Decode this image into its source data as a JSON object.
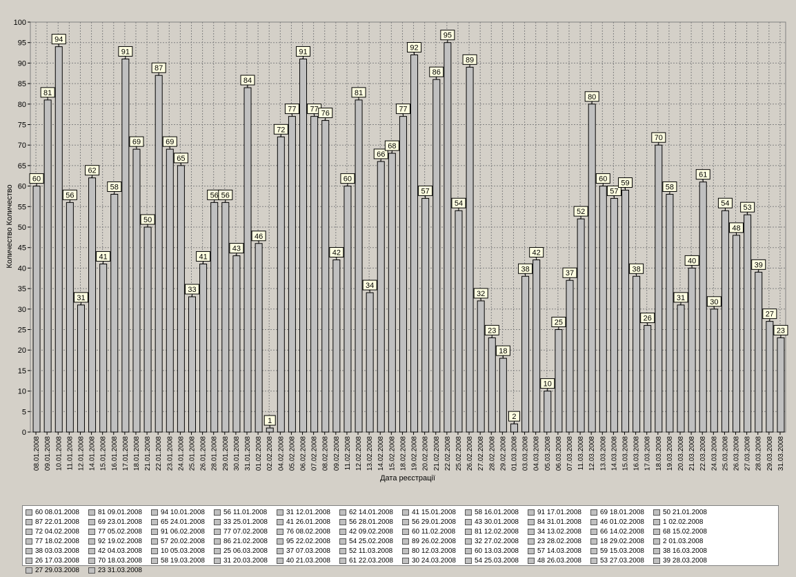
{
  "chart_data": {
    "type": "bar",
    "title": "",
    "xlabel": "Дата реєстрації",
    "ylabel": "Количество Количество",
    "ylim": [
      0,
      100
    ],
    "yticks": [
      0,
      5,
      10,
      15,
      20,
      25,
      30,
      35,
      40,
      45,
      50,
      55,
      60,
      65,
      70,
      75,
      80,
      85,
      90,
      95,
      100
    ],
    "grid": true,
    "legend_position": "bottom",
    "bar_color": "#c0c0c0",
    "categories": [
      "08.01.2008",
      "09.01.2008",
      "10.01.2008",
      "11.01.2008",
      "12.01.2008",
      "14.01.2008",
      "15.01.2008",
      "16.01.2008",
      "17.01.2008",
      "18.01.2008",
      "21.01.2008",
      "22.01.2008",
      "23.01.2008",
      "24.01.2008",
      "25.01.2008",
      "26.01.2008",
      "28.01.2008",
      "29.01.2008",
      "30.01.2008",
      "31.01.2008",
      "01.02.2008",
      "02.02.2008",
      "04.02.2008",
      "05.02.2008",
      "06.02.2008",
      "07.02.2008",
      "08.02.2008",
      "09.02.2008",
      "11.02.2008",
      "12.02.2008",
      "13.02.2008",
      "14.02.2008",
      "15.02.2008",
      "18.02.2008",
      "19.02.2008",
      "20.02.2008",
      "21.02.2008",
      "22.02.2008",
      "25.02.2008",
      "26.02.2008",
      "27.02.2008",
      "28.02.2008",
      "29.02.2008",
      "01.03.2008",
      "03.03.2008",
      "04.03.2008",
      "05.03.2008",
      "06.03.2008",
      "07.03.2008",
      "11.03.2008",
      "12.03.2008",
      "13.03.2008",
      "14.03.2008",
      "15.03.2008",
      "16.03.2008",
      "17.03.2008",
      "18.03.2008",
      "19.03.2008",
      "20.03.2008",
      "21.03.2008",
      "22.03.2008",
      "24.03.2008",
      "25.03.2008",
      "26.03.2008",
      "27.03.2008",
      "28.03.2008",
      "29.03.2008",
      "31.03.2008"
    ],
    "values": [
      60,
      81,
      94,
      56,
      31,
      62,
      41,
      58,
      91,
      69,
      50,
      87,
      69,
      65,
      33,
      41,
      56,
      56,
      43,
      84,
      46,
      1,
      72,
      77,
      91,
      77,
      76,
      42,
      60,
      81,
      34,
      66,
      68,
      77,
      92,
      57,
      86,
      95,
      54,
      89,
      32,
      23,
      18,
      2,
      38,
      42,
      10,
      25,
      37,
      52,
      80,
      60,
      57,
      59,
      38,
      26,
      70,
      58,
      31,
      40,
      61,
      30,
      54,
      48,
      53,
      39,
      27,
      23
    ],
    "legend": [
      {
        "label": "60 08.01.2008"
      },
      {
        "label": "81 09.01.2008"
      },
      {
        "label": "94 10.01.2008"
      },
      {
        "label": "56 11.01.2008"
      },
      {
        "label": "31 12.01.2008"
      },
      {
        "label": "62 14.01.2008"
      },
      {
        "label": "41 15.01.2008"
      },
      {
        "label": "58 16.01.2008"
      },
      {
        "label": "91 17.01.2008"
      },
      {
        "label": "69 18.01.2008"
      },
      {
        "label": "50 21.01.2008"
      },
      {
        "label": "87 22.01.2008"
      },
      {
        "label": "69 23.01.2008"
      },
      {
        "label": "65 24.01.2008"
      },
      {
        "label": "33 25.01.2008"
      },
      {
        "label": "41 26.01.2008"
      },
      {
        "label": "56 28.01.2008"
      },
      {
        "label": "56 29.01.2008"
      },
      {
        "label": "43 30.01.2008"
      },
      {
        "label": "84 31.01.2008"
      },
      {
        "label": "46 01.02.2008"
      },
      {
        "label": "1 02.02.2008"
      },
      {
        "label": "72 04.02.2008"
      },
      {
        "label": "77 05.02.2008"
      },
      {
        "label": "91 06.02.2008"
      },
      {
        "label": "77 07.02.2008"
      },
      {
        "label": "76 08.02.2008"
      },
      {
        "label": "42 09.02.2008"
      },
      {
        "label": "60 11.02.2008"
      },
      {
        "label": "81 12.02.2008"
      },
      {
        "label": "34 13.02.2008"
      },
      {
        "label": "66 14.02.2008"
      },
      {
        "label": "68 15.02.2008"
      },
      {
        "label": "77 18.02.2008"
      },
      {
        "label": "92 19.02.2008"
      },
      {
        "label": "57 20.02.2008"
      },
      {
        "label": "86 21.02.2008"
      },
      {
        "label": "95 22.02.2008"
      },
      {
        "label": "54 25.02.2008"
      },
      {
        "label": "89 26.02.2008"
      },
      {
        "label": "32 27.02.2008"
      },
      {
        "label": "23 28.02.2008"
      },
      {
        "label": "18 29.02.2008"
      },
      {
        "label": "2 01.03.2008"
      },
      {
        "label": "38 03.03.2008"
      },
      {
        "label": "42 04.03.2008"
      },
      {
        "label": "10 05.03.2008"
      },
      {
        "label": "25 06.03.2008"
      },
      {
        "label": "37 07.03.2008"
      },
      {
        "label": "52 11.03.2008"
      },
      {
        "label": "80 12.03.2008"
      },
      {
        "label": "60 13.03.2008"
      },
      {
        "label": "57 14.03.2008"
      },
      {
        "label": "59 15.03.2008"
      },
      {
        "label": "38 16.03.2008"
      },
      {
        "label": "26 17.03.2008"
      },
      {
        "label": "70 18.03.2008"
      },
      {
        "label": "58 19.03.2008"
      },
      {
        "label": "31 20.03.2008"
      },
      {
        "label": "40 21.03.2008"
      },
      {
        "label": "61 22.03.2008"
      },
      {
        "label": "30 24.03.2008"
      },
      {
        "label": "54 25.03.2008"
      },
      {
        "label": "48 26.03.2008"
      },
      {
        "label": "53 27.03.2008"
      },
      {
        "label": "39 28.03.2008"
      },
      {
        "label": "27 29.03.2008"
      },
      {
        "label": "23 31.03.2008"
      }
    ]
  }
}
